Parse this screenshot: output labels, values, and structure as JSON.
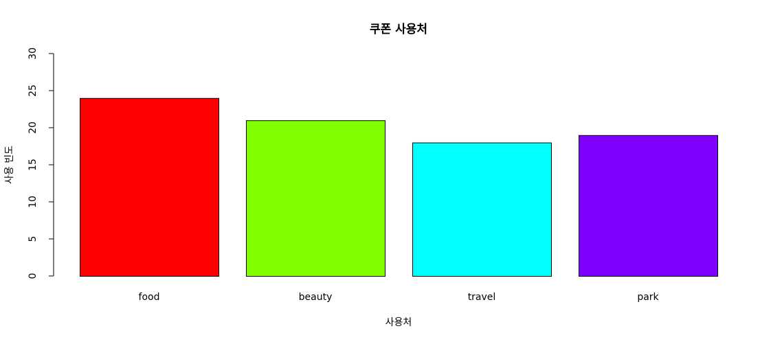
{
  "chart_data": {
    "type": "bar",
    "title": "쿠폰 사용처",
    "xlabel": "사용처",
    "ylabel": "사용 빈도",
    "categories": [
      "food",
      "beauty",
      "travel",
      "park"
    ],
    "values": [
      24,
      21,
      18,
      19
    ],
    "colors": [
      "#FF0000",
      "#80FF00",
      "#00FFFF",
      "#8000FF"
    ],
    "ylim": [
      0,
      30
    ],
    "yticks": [
      0,
      5,
      10,
      15,
      20,
      25,
      30
    ],
    "grid": false,
    "legend": "none"
  }
}
